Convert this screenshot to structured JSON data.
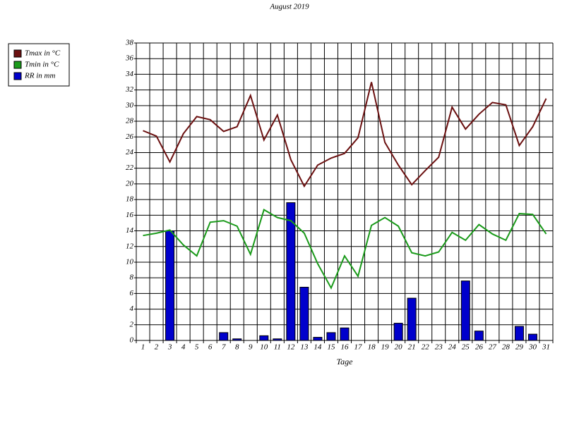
{
  "chart_data": {
    "type": "weather",
    "title": "August 2019",
    "x_label": "Tage",
    "categories": [
      "1",
      "2",
      "3",
      "4",
      "5",
      "6",
      "7",
      "8",
      "9",
      "10",
      "11",
      "12",
      "13",
      "14",
      "15",
      "16",
      "17",
      "18",
      "19",
      "20",
      "21",
      "22",
      "23",
      "24",
      "25",
      "26",
      "27",
      "28",
      "29",
      "30",
      "31"
    ],
    "ylim": [
      0,
      38
    ],
    "yticks": [
      0,
      2,
      4,
      6,
      8,
      10,
      12,
      14,
      16,
      18,
      20,
      22,
      24,
      26,
      28,
      30,
      32,
      34,
      36,
      38
    ],
    "grid": true,
    "series": [
      {
        "name": "Tmax in °C",
        "kind": "line",
        "color": "#6b1010",
        "values": [
          26.8,
          26.1,
          22.8,
          26.4,
          28.6,
          28.2,
          26.7,
          27.3,
          31.3,
          25.6,
          28.8,
          23.1,
          19.7,
          22.4,
          23.3,
          23.9,
          25.9,
          33.0,
          25.3,
          22.4,
          19.9,
          21.7,
          23.4,
          29.8,
          27.0,
          28.9,
          30.4,
          30.1,
          24.9,
          27.3,
          30.9
        ]
      },
      {
        "name": "Tmin in °C",
        "kind": "line",
        "color": "#1a9a1a",
        "values": [
          13.4,
          13.7,
          14.1,
          12.2,
          10.8,
          15.1,
          15.3,
          14.6,
          11.0,
          16.7,
          15.7,
          15.3,
          13.7,
          9.8,
          6.7,
          10.8,
          8.2,
          14.7,
          15.7,
          14.6,
          11.2,
          10.8,
          11.3,
          13.8,
          12.8,
          14.8,
          13.6,
          12.8,
          16.2,
          16.1,
          13.6
        ]
      },
      {
        "name": "RR in mm",
        "kind": "bar",
        "color": "#0000cc",
        "values": [
          0,
          0,
          14.0,
          0,
          0,
          0,
          1.0,
          0.2,
          0,
          0.6,
          0.2,
          17.6,
          6.8,
          0.4,
          1.0,
          1.6,
          0,
          0,
          0,
          2.2,
          5.4,
          0,
          0,
          0,
          7.6,
          1.2,
          0,
          0,
          1.8,
          0.8,
          0
        ]
      }
    ]
  }
}
